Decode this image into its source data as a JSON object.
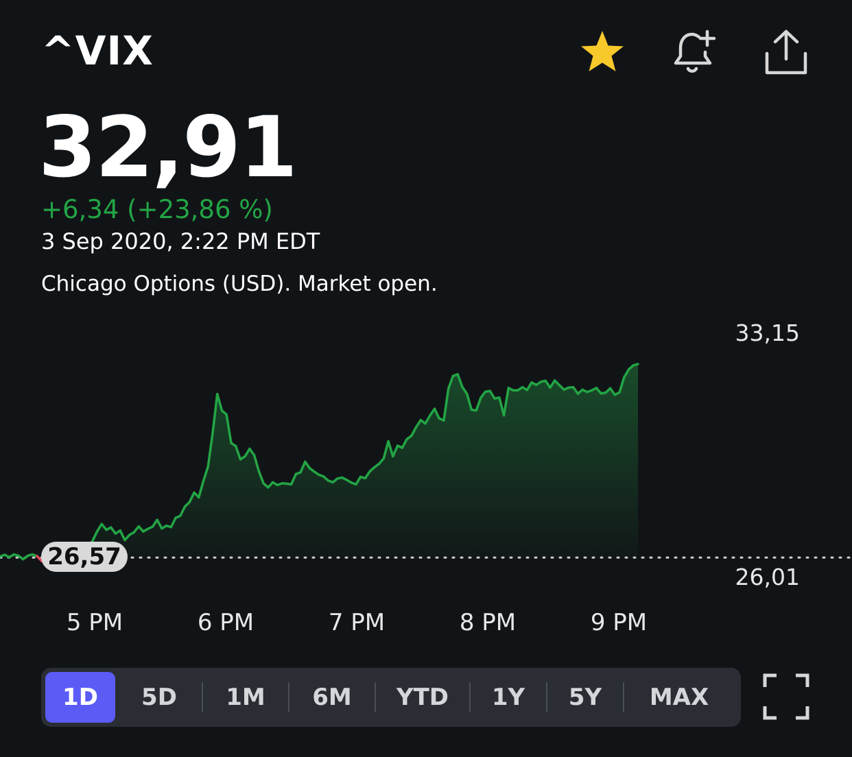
{
  "header": {
    "ticker": "^VIX",
    "icons": [
      "star-icon",
      "bell-plus-icon",
      "share-icon"
    ]
  },
  "quote": {
    "price": "32,91",
    "change": "+6,34 (+23,86 %)",
    "timestamp": "3 Sep 2020, 2:22 PM EDT",
    "exchange": "Chicago Options (USD). Market open."
  },
  "colors": {
    "accent": "#5b5cf6",
    "up": "#23a545",
    "star": "#f7c92b",
    "background": "#111417"
  },
  "chart_data": {
    "type": "line",
    "x_ticks": [
      "5 PM",
      "6 PM",
      "7 PM",
      "8 PM",
      "9 PM"
    ],
    "y_labels": {
      "high": "33,15",
      "low": "26,01"
    },
    "previous_close_label": "26,57",
    "previous_close": 26.57,
    "ylim": [
      26.01,
      33.15
    ],
    "session_start_hour": 16.3,
    "series": [
      {
        "values": [
          26.6,
          26.65,
          26.58,
          26.66,
          26.62,
          26.52,
          26.62,
          26.66,
          26.61,
          26.47,
          26.43,
          26.45,
          26.43,
          26.41,
          26.37,
          26.47,
          26.52,
          26.57,
          26.63,
          26.88,
          27.05,
          27.33,
          27.55,
          27.38,
          27.45,
          27.27,
          27.36,
          27.08,
          27.23,
          27.31,
          27.48,
          27.33,
          27.41,
          27.47,
          27.67,
          27.42,
          27.5,
          27.46,
          27.73,
          27.79,
          28.06,
          28.19,
          28.47,
          28.33,
          28.81,
          29.23,
          30.21,
          31.35,
          30.87,
          30.75,
          29.92,
          29.83,
          29.44,
          29.53,
          29.75,
          29.56,
          29.09,
          28.74,
          28.62,
          28.77,
          28.69,
          28.74,
          28.73,
          28.71,
          29.01,
          29.06,
          29.37,
          29.18,
          29.08,
          28.99,
          28.94,
          28.82,
          28.77,
          28.88,
          28.91,
          28.84,
          28.76,
          28.71,
          28.93,
          28.89,
          29.09,
          29.21,
          29.31,
          29.47,
          29.97,
          29.53,
          29.84,
          29.78,
          30.03,
          30.13,
          30.38,
          30.59,
          30.49,
          30.72,
          30.92,
          30.64,
          30.58,
          31.51,
          31.88,
          31.93,
          31.56,
          31.36,
          30.89,
          30.87,
          31.24,
          31.42,
          31.44,
          31.22,
          31.25,
          30.73,
          31.53,
          31.46,
          31.46,
          31.55,
          31.47,
          31.69,
          31.62,
          31.71,
          31.74,
          31.54,
          31.75,
          31.61,
          31.48,
          31.54,
          31.55,
          31.36,
          31.48,
          31.41,
          31.46,
          31.53,
          31.37,
          31.39,
          31.52,
          31.33,
          31.4,
          31.84,
          32.07,
          32.19,
          32.23
        ]
      }
    ]
  },
  "ranges": {
    "items": [
      "1D",
      "5D",
      "1M",
      "6M",
      "YTD",
      "1Y",
      "5Y",
      "MAX"
    ],
    "selected": "1D"
  }
}
